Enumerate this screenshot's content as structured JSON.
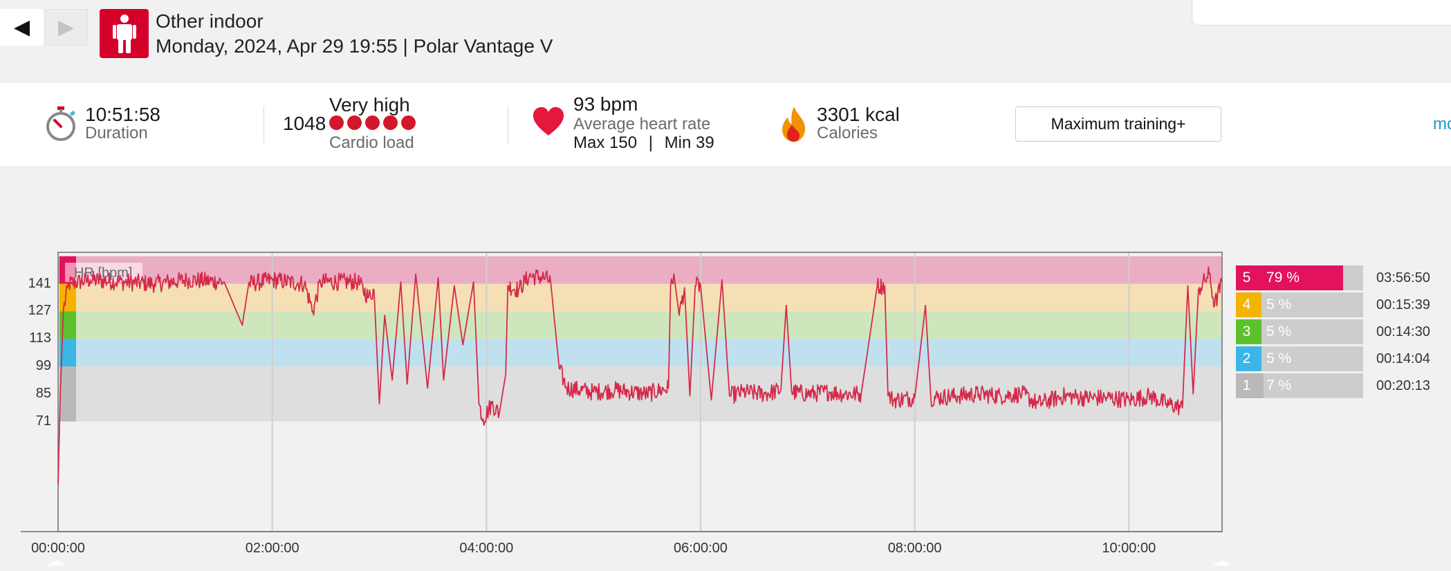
{
  "nav": {
    "prev_icon": "◀",
    "next_icon": "▶"
  },
  "session": {
    "sport_icon": "person-icon",
    "sport": "Other indoor",
    "subtitle": "Monday, 2024, Apr 29 19:55 | Polar Vantage V"
  },
  "summary": {
    "duration_value": "10:51:58",
    "duration_label": "Duration",
    "cardio_value": "1048",
    "cardio_level": "Very high",
    "cardio_dots": 5,
    "cardio_label": "Cardio load",
    "hr_value": "93 bpm",
    "hr_label": "Average heart rate",
    "hr_max": "Max 150",
    "hr_sep": "|",
    "hr_min": "Min 39",
    "calories_value": "3301 kcal",
    "calories_label": "Calories",
    "training_benefit": "Maximum training+",
    "more_link": "mo"
  },
  "colors": {
    "accent": "#d4002a",
    "hr_line": "#d42a4a",
    "zone5": "#e2125e",
    "zone4": "#f3b300",
    "zone3": "#5dc02d",
    "zone2": "#3bb6e6",
    "zone1": "#b9b9b9"
  },
  "chart_data": {
    "type": "line",
    "series": [
      {
        "name": "HR [bpm]"
      }
    ],
    "ylabel": "HR [bpm]",
    "y_ticks": [
      "141",
      "127",
      "113",
      "99",
      "85",
      "71"
    ],
    "x_ticks": [
      "00:00:00",
      "02:00:00",
      "04:00:00",
      "06:00:00",
      "08:00:00",
      "10:00:00"
    ],
    "xlim_hours": [
      0,
      10.87
    ],
    "ylim": [
      15,
      157
    ],
    "grid": true,
    "zones": [
      {
        "zone": "5",
        "from": 141,
        "to": 155
      },
      {
        "zone": "4",
        "from": 127,
        "to": 141
      },
      {
        "zone": "3",
        "from": 113,
        "to": 127
      },
      {
        "zone": "2",
        "from": 99,
        "to": 113
      },
      {
        "zone": "1",
        "from": 71,
        "to": 99
      }
    ],
    "hr_points": [
      [
        0.0,
        39
      ],
      [
        0.02,
        85
      ],
      [
        0.05,
        128
      ],
      [
        0.1,
        141
      ],
      [
        0.3,
        143
      ],
      [
        0.6,
        142
      ],
      [
        0.9,
        141
      ],
      [
        1.2,
        143
      ],
      [
        1.55,
        142
      ],
      [
        1.72,
        120
      ],
      [
        1.78,
        141
      ],
      [
        2.0,
        143
      ],
      [
        2.3,
        141
      ],
      [
        2.38,
        127
      ],
      [
        2.45,
        142
      ],
      [
        2.8,
        142
      ],
      [
        2.9,
        134
      ],
      [
        2.95,
        138
      ],
      [
        3.0,
        80
      ],
      [
        3.05,
        125
      ],
      [
        3.12,
        92
      ],
      [
        3.2,
        142
      ],
      [
        3.26,
        90
      ],
      [
        3.34,
        146
      ],
      [
        3.45,
        88
      ],
      [
        3.55,
        144
      ],
      [
        3.6,
        92
      ],
      [
        3.7,
        140
      ],
      [
        3.78,
        110
      ],
      [
        3.88,
        142
      ],
      [
        3.93,
        80
      ],
      [
        3.97,
        72
      ],
      [
        4.05,
        80
      ],
      [
        4.12,
        75
      ],
      [
        4.18,
        95
      ],
      [
        4.2,
        140
      ],
      [
        4.3,
        138
      ],
      [
        4.4,
        145
      ],
      [
        4.55,
        144
      ],
      [
        4.6,
        142
      ],
      [
        4.68,
        98
      ],
      [
        4.75,
        88
      ],
      [
        5.0,
        86
      ],
      [
        5.2,
        87
      ],
      [
        5.5,
        85
      ],
      [
        5.7,
        88
      ],
      [
        5.72,
        140
      ],
      [
        5.75,
        146
      ],
      [
        5.8,
        125
      ],
      [
        5.85,
        139
      ],
      [
        5.9,
        84
      ],
      [
        5.95,
        140
      ],
      [
        6.0,
        140
      ],
      [
        6.1,
        82
      ],
      [
        6.2,
        143
      ],
      [
        6.27,
        84
      ],
      [
        6.4,
        86
      ],
      [
        6.6,
        85
      ],
      [
        6.75,
        87
      ],
      [
        6.8,
        130
      ],
      [
        6.85,
        86
      ],
      [
        7.0,
        85
      ],
      [
        7.2,
        86
      ],
      [
        7.35,
        85
      ],
      [
        7.5,
        85
      ],
      [
        7.65,
        140
      ],
      [
        7.72,
        140
      ],
      [
        7.75,
        84
      ],
      [
        7.8,
        82
      ],
      [
        8.0,
        83
      ],
      [
        8.1,
        130
      ],
      [
        8.15,
        83
      ],
      [
        8.4,
        84
      ],
      [
        8.6,
        85
      ],
      [
        8.8,
        84
      ],
      [
        9.0,
        85
      ],
      [
        9.15,
        80
      ],
      [
        9.4,
        84
      ],
      [
        9.6,
        83
      ],
      [
        9.8,
        83
      ],
      [
        10.0,
        82
      ],
      [
        10.2,
        84
      ],
      [
        10.35,
        80
      ],
      [
        10.5,
        78
      ],
      [
        10.55,
        140
      ],
      [
        10.6,
        85
      ],
      [
        10.65,
        138
      ],
      [
        10.75,
        146
      ],
      [
        10.8,
        130
      ],
      [
        10.87,
        142
      ]
    ]
  },
  "zones_legend": [
    {
      "zone": "5",
      "percent_label": "79 %",
      "percent": 79,
      "time": "03:56:50"
    },
    {
      "zone": "4",
      "percent_label": "5 %",
      "percent": 5,
      "time": "00:15:39"
    },
    {
      "zone": "3",
      "percent_label": "5 %",
      "percent": 5,
      "time": "00:14:30"
    },
    {
      "zone": "2",
      "percent_label": "5 %",
      "percent": 5,
      "time": "00:14:04"
    },
    {
      "zone": "1",
      "percent_label": "7 %",
      "percent": 7,
      "time": "00:20:13"
    }
  ]
}
